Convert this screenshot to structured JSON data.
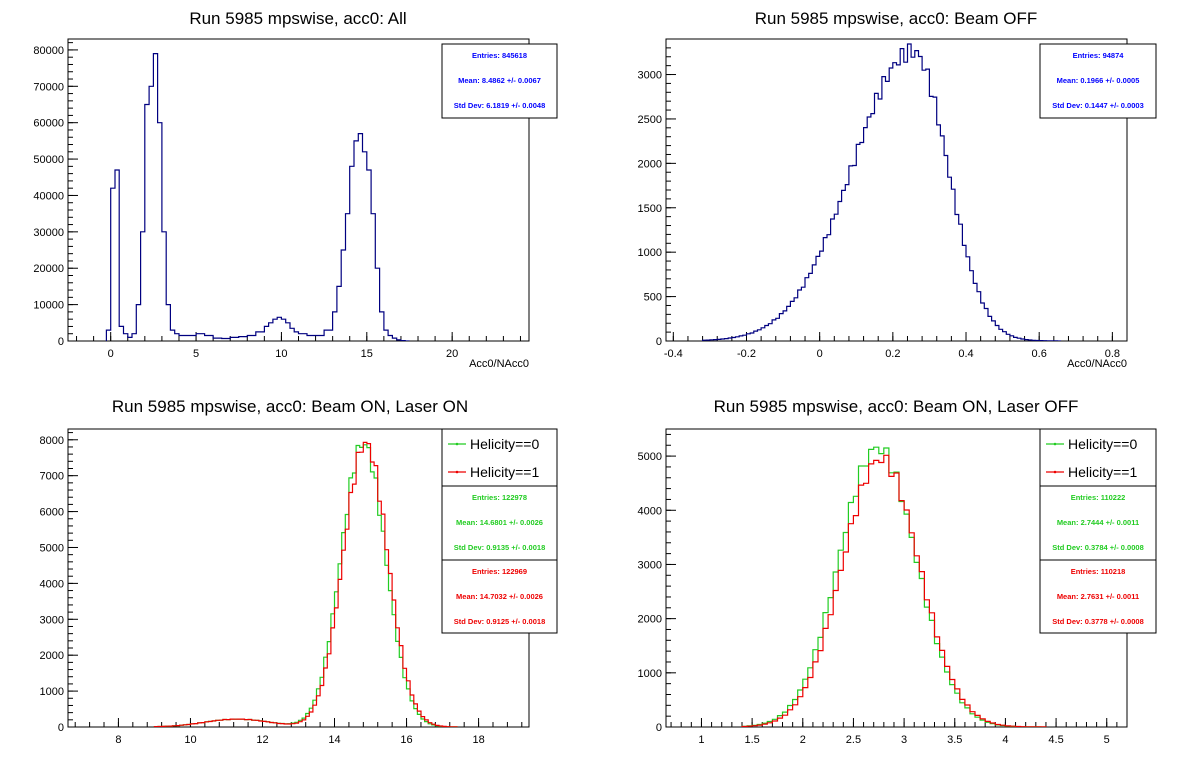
{
  "colors": {
    "navy": "#000080",
    "green": "#22cc22",
    "red": "#ee0000",
    "blue": "#0000ff",
    "black": "#000000"
  },
  "chart_data": [
    {
      "type": "histogram",
      "title": "Run 5985 mpswise, acc0: All",
      "xlabel": "Acc0/NAcc0",
      "xlim": [
        -2.5,
        24.5
      ],
      "ylim": [
        0,
        83000
      ],
      "xticks": [
        0,
        5,
        10,
        15,
        20
      ],
      "yticks": [
        0,
        10000,
        20000,
        30000,
        40000,
        50000,
        60000,
        70000,
        80000
      ],
      "stats": [
        {
          "color": "blue",
          "entries": "Entries: 845618",
          "mean": "Mean: 8.4862 +/- 0.0067",
          "std": "Std Dev: 6.1819 +/- 0.0048"
        }
      ],
      "series": [
        {
          "color": "navy",
          "x": [
            -0.25,
            0,
            0.25,
            0.5,
            0.75,
            1,
            1.25,
            1.5,
            1.75,
            2,
            2.25,
            2.5,
            2.75,
            3,
            3.25,
            3.5,
            3.75,
            4,
            4.5,
            5,
            5.5,
            6,
            6.5,
            7,
            7.5,
            8,
            8.5,
            9,
            9.25,
            9.5,
            9.75,
            10,
            10.25,
            10.5,
            10.75,
            11,
            11.5,
            12,
            12.5,
            13,
            13.25,
            13.5,
            13.75,
            14,
            14.25,
            14.5,
            14.75,
            15,
            15.25,
            15.5,
            15.75,
            16,
            16.25,
            16.5,
            16.75,
            17,
            17.25
          ],
          "values": [
            3000,
            42000,
            47000,
            4000,
            2000,
            1000,
            2000,
            10000,
            30000,
            65000,
            70000,
            79000,
            60000,
            30000,
            10000,
            3000,
            2000,
            1500,
            1500,
            2000,
            1500,
            800,
            700,
            1000,
            1200,
            1500,
            2500,
            4000,
            5000,
            6000,
            6500,
            6000,
            5000,
            3500,
            2500,
            2000,
            1500,
            1500,
            3000,
            8000,
            15000,
            25000,
            35000,
            48000,
            55000,
            57000,
            52000,
            47000,
            35000,
            20000,
            8000,
            3000,
            1500,
            800,
            300,
            100,
            0
          ]
        }
      ]
    },
    {
      "type": "histogram",
      "title": "Run 5985 mpswise, acc0: Beam OFF",
      "xlabel": "Acc0/NAcc0",
      "xlim": [
        -0.42,
        0.84
      ],
      "ylim": [
        0,
        3400
      ],
      "xticks": [
        -0.4,
        -0.2,
        0,
        0.2,
        0.4,
        0.6,
        0.8
      ],
      "yticks": [
        0,
        500,
        1000,
        1500,
        2000,
        2500,
        3000
      ],
      "stats": [
        {
          "color": "blue",
          "entries": "Entries: 94874",
          "mean": "Mean: 0.1966 +/- 0.0005",
          "std": "Std Dev: 0.1447 +/- 0.0003"
        }
      ],
      "series": [
        {
          "color": "navy",
          "mean": 0.255,
          "sigma_left": 0.165,
          "sigma_right": 0.095,
          "peak": 3260,
          "xmin": -0.32,
          "xmax": 0.66,
          "bins": 98
        }
      ]
    },
    {
      "type": "histogram",
      "title": "Run 5985 mpswise, acc0: Beam ON, Laser ON",
      "xlabel": "",
      "xlim": [
        6.6,
        19.4
      ],
      "ylim": [
        0,
        8300
      ],
      "xticks": [
        8,
        10,
        12,
        14,
        16,
        18
      ],
      "yticks": [
        0,
        1000,
        2000,
        3000,
        4000,
        5000,
        6000,
        7000,
        8000
      ],
      "legend": [
        {
          "label": "Helicity==0",
          "color": "green"
        },
        {
          "label": "Helicity==1",
          "color": "red"
        }
      ],
      "stats": [
        {
          "color": "green",
          "entries": "Entries: 122978",
          "mean": "Mean: 14.6801 +/- 0.0026",
          "std": "Std Dev: 0.9135 +/- 0.0018"
        },
        {
          "color": "red",
          "entries": "Entries: 122969",
          "mean": "Mean: 14.7032 +/- 0.0026",
          "std": "Std Dev: 0.9125 +/- 0.0018"
        }
      ],
      "series": [
        {
          "name": "Helicity==0",
          "color": "green",
          "mean": 14.8,
          "sigma": 0.62,
          "peak": 7900,
          "bump_mean": 11.3,
          "bump_sigma": 0.9,
          "bump_peak": 220,
          "xmin": 9,
          "xmax": 17.4,
          "bins": 84
        },
        {
          "name": "Helicity==1",
          "color": "red",
          "mean": 14.86,
          "sigma": 0.62,
          "peak": 7900,
          "bump_mean": 11.3,
          "bump_sigma": 0.9,
          "bump_peak": 220,
          "xmin": 9,
          "xmax": 17.4,
          "bins": 84
        }
      ]
    },
    {
      "type": "histogram",
      "title": "Run 5985 mpswise, acc0: Beam ON, Laser OFF",
      "xlabel": "",
      "xlim": [
        0.65,
        5.2
      ],
      "ylim": [
        0,
        5500
      ],
      "xticks": [
        1,
        1.5,
        2,
        2.5,
        3,
        3.5,
        4,
        4.5,
        5
      ],
      "yticks": [
        0,
        1000,
        2000,
        3000,
        4000,
        5000
      ],
      "legend": [
        {
          "label": "Helicity==0",
          "color": "green"
        },
        {
          "label": "Helicity==1",
          "color": "red"
        }
      ],
      "stats": [
        {
          "color": "green",
          "entries": "Entries: 110222",
          "mean": "Mean: 2.7444 +/- 0.0011",
          "std": "Std Dev: 0.3784 +/- 0.0008"
        },
        {
          "color": "red",
          "entries": "Entries: 110218",
          "mean": "Mean: 2.7631 +/- 0.0011",
          "std": "Std Dev: 0.3778 +/- 0.0008"
        }
      ],
      "series": [
        {
          "name": "Helicity==0",
          "color": "green",
          "mean": 2.74,
          "sigma": 0.38,
          "peak": 5150,
          "xmin": 1.4,
          "xmax": 4.4,
          "bins": 60
        },
        {
          "name": "Helicity==1",
          "color": "red",
          "mean": 2.77,
          "sigma": 0.38,
          "peak": 4950,
          "xmin": 1.4,
          "xmax": 4.4,
          "bins": 60
        }
      ]
    }
  ]
}
